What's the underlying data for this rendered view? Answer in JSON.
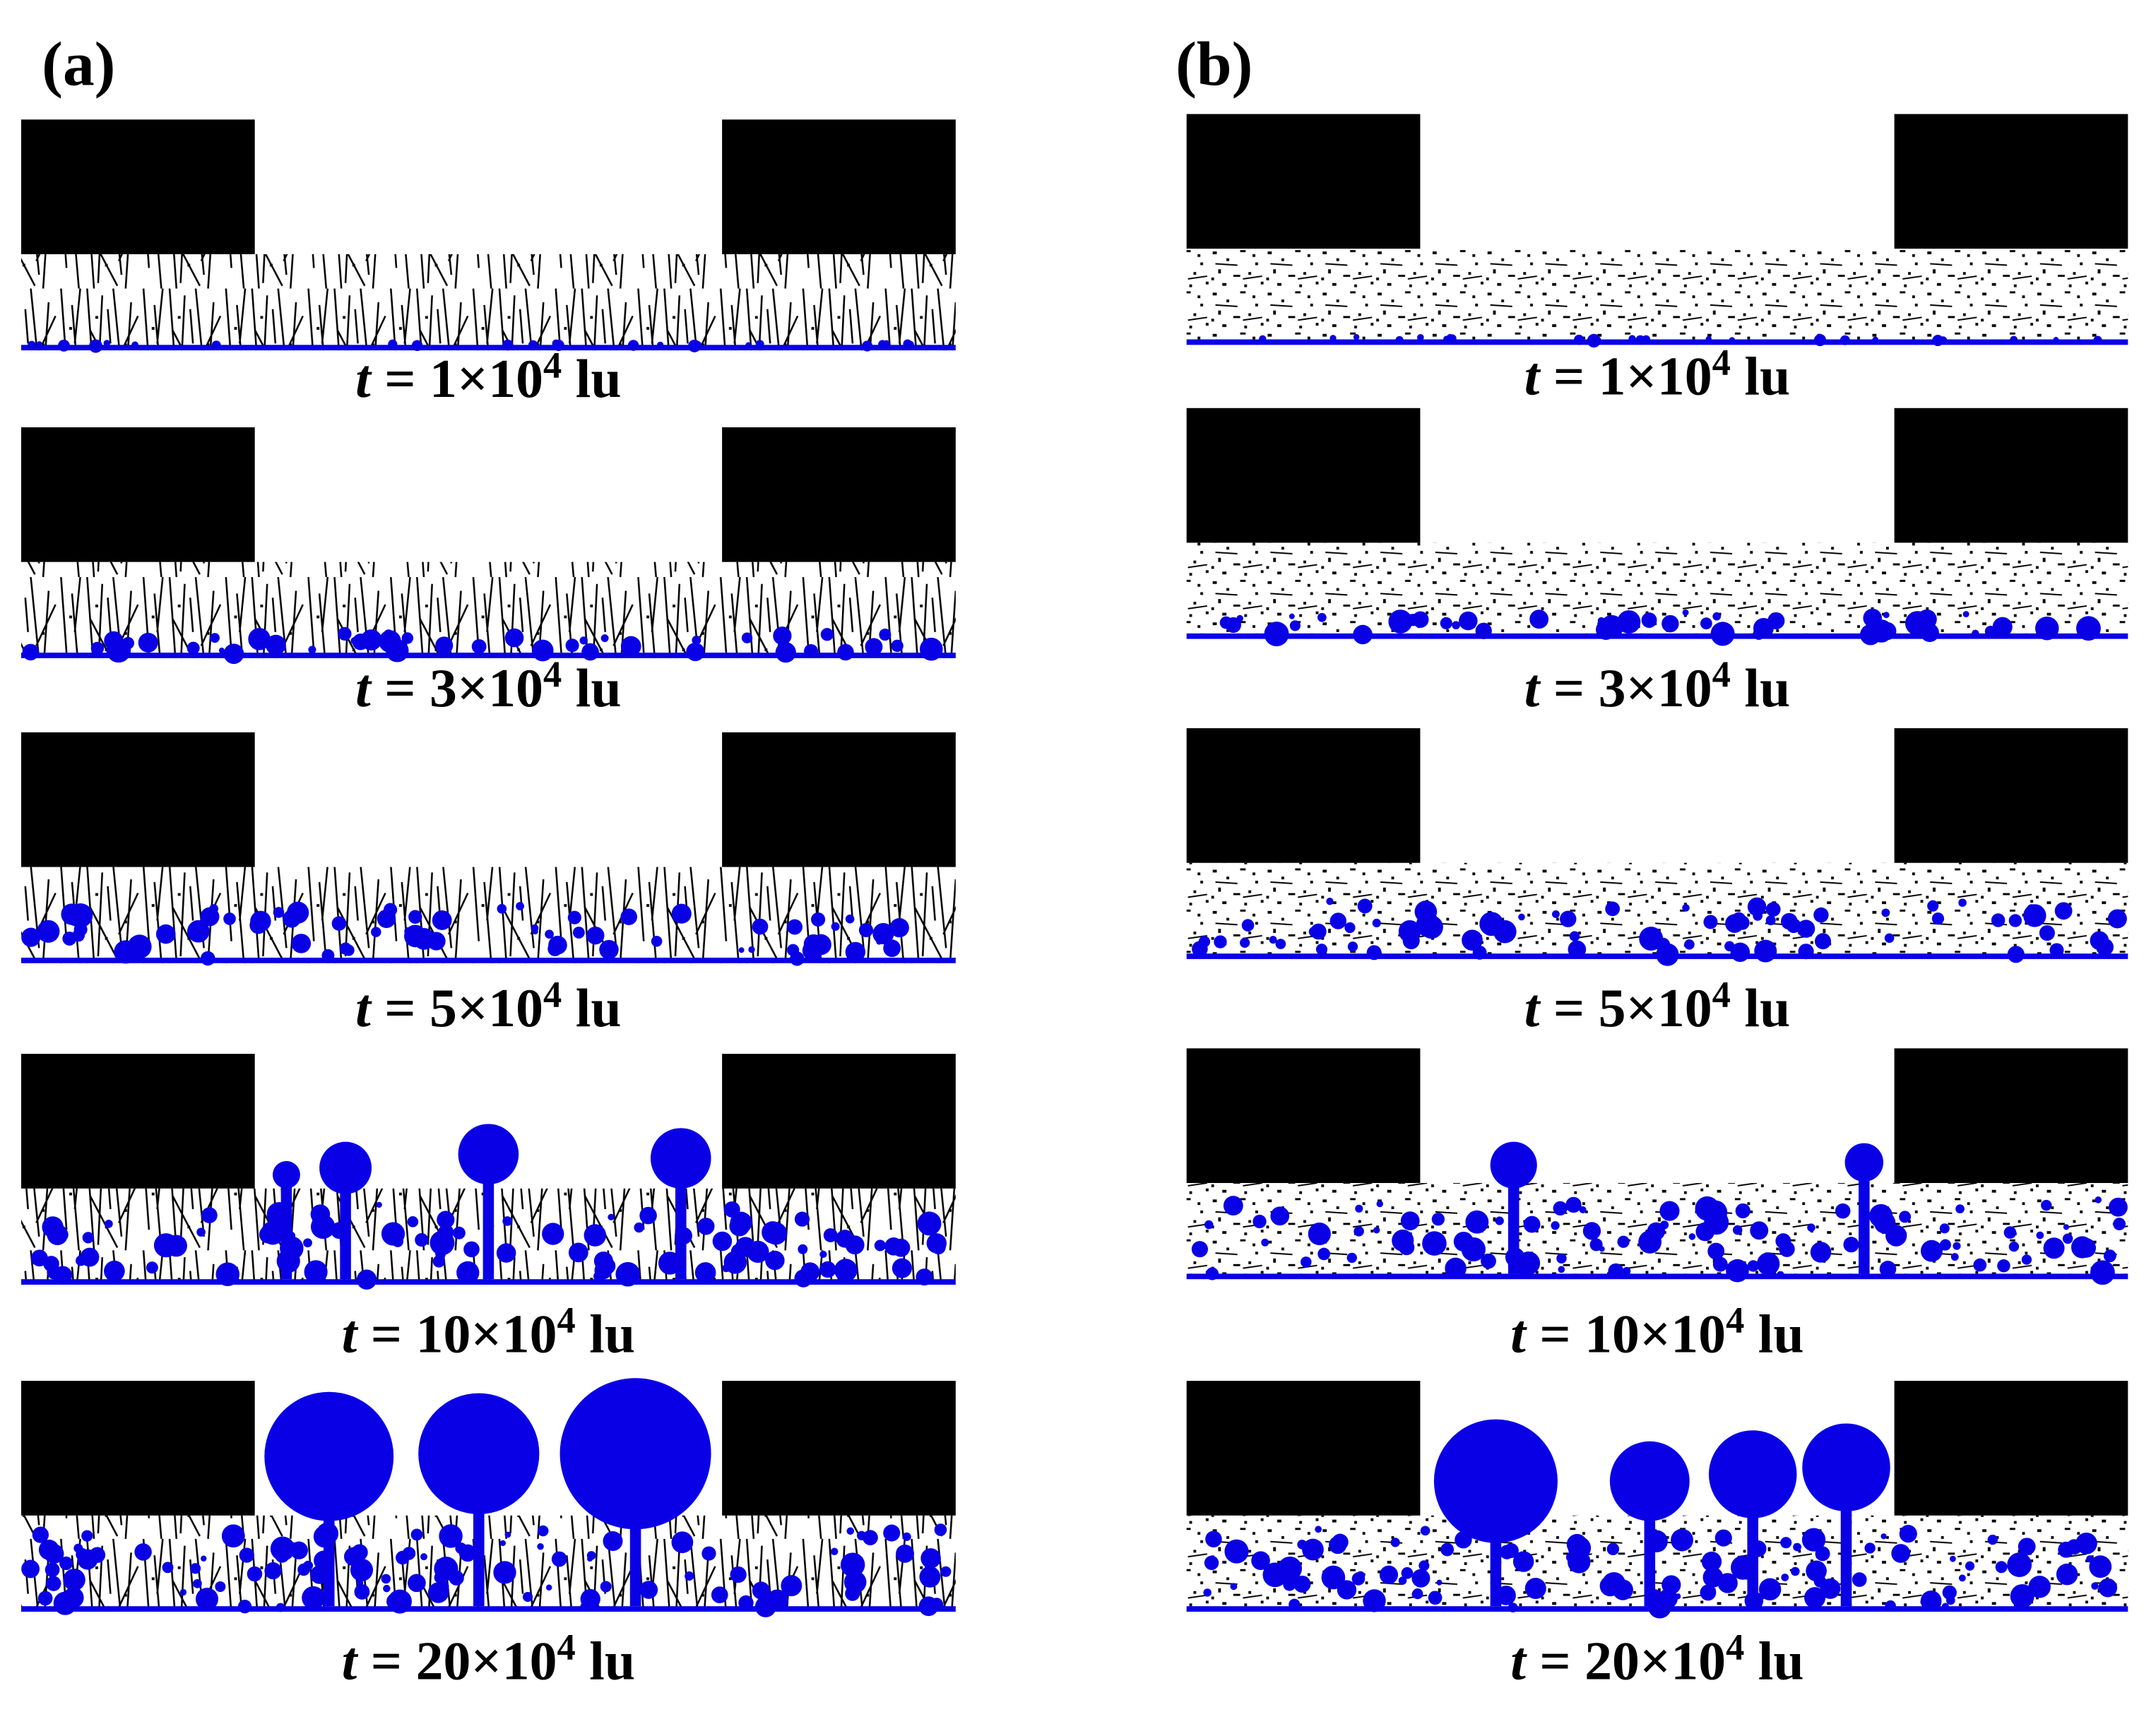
{
  "panels": [
    {
      "label": "(a)",
      "frames": [
        {
          "symbol": "t",
          "text": "= 1×10",
          "exponent": "4",
          "unit": "lu"
        },
        {
          "symbol": "t",
          "text": "= 3×10",
          "exponent": "4",
          "unit": "lu"
        },
        {
          "symbol": "t",
          "text": "= 5×10",
          "exponent": "4",
          "unit": "lu"
        },
        {
          "symbol": "t",
          "text": "= 10×10",
          "exponent": "4",
          "unit": "lu"
        },
        {
          "symbol": "t",
          "text": "= 20×10",
          "exponent": "4",
          "unit": "lu"
        }
      ]
    },
    {
      "label": "(b)",
      "frames": [
        {
          "symbol": "t",
          "text": "= 1×10",
          "exponent": "4",
          "unit": "lu"
        },
        {
          "symbol": "t",
          "text": "= 3×10",
          "exponent": "4",
          "unit": "lu"
        },
        {
          "symbol": "t",
          "text": "= 5×10",
          "exponent": "4",
          "unit": "lu"
        },
        {
          "symbol": "t",
          "text": "= 10×10",
          "exponent": "4",
          "unit": "lu"
        },
        {
          "symbol": "t",
          "text": "= 20×10",
          "exponent": "4",
          "unit": "lu"
        }
      ]
    }
  ]
}
